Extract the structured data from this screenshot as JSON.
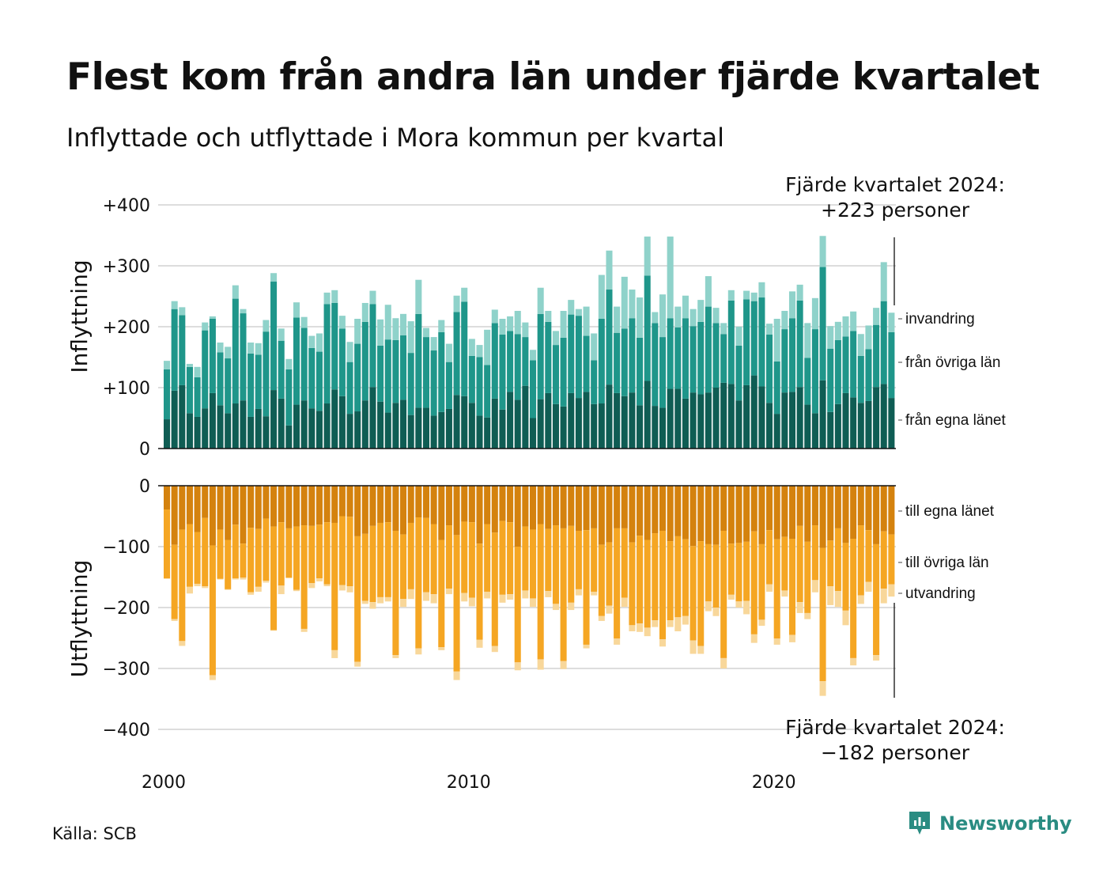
{
  "title": "Flest kom från andra län under fjärde kvartalet",
  "subtitle": "Inflyttade och utflyttade i Mora kommun per kvartal",
  "source": "Källa: SCB",
  "brand": "Newsworthy",
  "colors": {
    "in_own": "#0f5d54",
    "in_other": "#1f968a",
    "in_immig": "#8fd2ca",
    "out_own": "#d4820e",
    "out_other": "#f5a623",
    "out_emig": "#f8d79a",
    "grid": "#dddddd",
    "brand": "#2a8c82"
  },
  "chart_data": [
    {
      "type": "bar",
      "subtype": "stacked",
      "ylabel": "Inflyttning",
      "ylim": [
        0,
        400
      ],
      "yticks": [
        "0",
        "+100",
        "+200",
        "+300",
        "+400"
      ],
      "x_ticks": [
        "2000",
        "2010",
        "2020"
      ],
      "grid": true,
      "annotation": [
        "Fjärde kvartalet 2024:",
        "+223 personer"
      ],
      "series": [
        {
          "name": "från egna länet",
          "values": [
            48,
            95,
            104,
            58,
            52,
            66,
            91,
            71,
            58,
            74,
            79,
            52,
            65,
            53,
            96,
            82,
            38,
            72,
            79,
            66,
            62,
            74,
            97,
            86,
            57,
            61,
            79,
            101,
            77,
            59,
            75,
            80,
            55,
            67,
            67,
            54,
            60,
            65,
            88,
            86,
            75,
            54,
            51,
            82,
            64,
            93,
            80,
            103,
            50,
            81,
            91,
            73,
            69,
            91,
            83,
            93,
            73,
            74,
            105,
            91,
            86,
            92,
            71,
            111,
            70,
            67,
            98,
            98,
            82,
            92,
            89,
            92,
            100,
            108,
            106,
            79,
            104,
            120,
            102,
            75,
            57,
            92,
            93,
            101,
            72,
            58,
            112,
            60,
            73,
            91,
            84,
            75,
            78,
            101,
            106,
            83
          ]
        },
        {
          "name": "från övriga län",
          "values": [
            82,
            134,
            115,
            76,
            65,
            128,
            122,
            87,
            90,
            172,
            143,
            104,
            89,
            139,
            178,
            95,
            92,
            143,
            119,
            99,
            97,
            163,
            142,
            111,
            85,
            111,
            129,
            136,
            92,
            120,
            103,
            106,
            102,
            154,
            116,
            107,
            131,
            77,
            136,
            155,
            77,
            96,
            86,
            124,
            123,
            100,
            108,
            80,
            95,
            140,
            117,
            97,
            113,
            129,
            135,
            92,
            72,
            139,
            156,
            99,
            111,
            122,
            111,
            173,
            136,
            116,
            116,
            101,
            132,
            109,
            119,
            141,
            106,
            80,
            137,
            90,
            141,
            122,
            146,
            112,
            86,
            104,
            121,
            142,
            77,
            138,
            186,
            104,
            105,
            93,
            109,
            77,
            85,
            102,
            136,
            108
          ]
        },
        {
          "name": "invandring",
          "values": [
            14,
            13,
            13,
            5,
            17,
            13,
            4,
            16,
            19,
            22,
            7,
            18,
            19,
            19,
            14,
            20,
            17,
            25,
            18,
            20,
            30,
            19,
            21,
            21,
            33,
            41,
            31,
            22,
            43,
            57,
            36,
            35,
            52,
            56,
            15,
            22,
            20,
            30,
            27,
            23,
            28,
            20,
            58,
            22,
            26,
            24,
            38,
            24,
            17,
            43,
            18,
            23,
            44,
            24,
            11,
            48,
            44,
            72,
            64,
            43,
            85,
            47,
            66,
            64,
            18,
            70,
            134,
            34,
            37,
            28,
            36,
            50,
            25,
            18,
            17,
            31,
            14,
            14,
            25,
            18,
            70,
            30,
            44,
            26,
            57,
            51,
            51,
            37,
            30,
            33,
            32,
            36,
            39,
            28,
            64,
            32
          ]
        }
      ],
      "legend": [
        "invandring",
        "från övriga län",
        "från egna länet"
      ]
    },
    {
      "type": "bar",
      "subtype": "stacked",
      "ylabel": "Utflyttning",
      "ylim": [
        -400,
        0
      ],
      "yticks": [
        "0",
        "−100",
        "−200",
        "−300",
        "−400"
      ],
      "x_ticks": [
        "2000",
        "2010",
        "2020"
      ],
      "grid": true,
      "annotation": [
        "Fjärde kvartalet 2024:",
        "−182 personer"
      ],
      "series": [
        {
          "name": "till egna länet",
          "values": [
            -39,
            -97,
            -72,
            -63,
            -76,
            -53,
            -98,
            -72,
            -89,
            -64,
            -95,
            -69,
            -71,
            -54,
            -67,
            -60,
            -70,
            -67,
            -65,
            -66,
            -64,
            -60,
            -61,
            -50,
            -51,
            -83,
            -79,
            -66,
            -61,
            -60,
            -74,
            -80,
            -61,
            -52,
            -53,
            -63,
            -89,
            -65,
            -81,
            -59,
            -60,
            -95,
            -63,
            -77,
            -58,
            -60,
            -100,
            -67,
            -72,
            -63,
            -71,
            -65,
            -70,
            -66,
            -74,
            -73,
            -70,
            -97,
            -93,
            -70,
            -70,
            -93,
            -82,
            -89,
            -78,
            -74,
            -91,
            -83,
            -88,
            -99,
            -91,
            -96,
            -97,
            -74,
            -95,
            -94,
            -92,
            -75,
            -96,
            -73,
            -88,
            -84,
            -87,
            -66,
            -92,
            -65,
            -102,
            -90,
            -70,
            -94,
            -87,
            -65,
            -73,
            -96,
            -75,
            -80
          ]
        },
        {
          "name": "till övriga län",
          "values": [
            -113,
            -122,
            -183,
            -103,
            -85,
            -112,
            -213,
            -81,
            -81,
            -88,
            -56,
            -106,
            -95,
            -102,
            -170,
            -104,
            -81,
            -104,
            -170,
            -94,
            -88,
            -102,
            -209,
            -113,
            -114,
            -206,
            -110,
            -125,
            -122,
            -123,
            -204,
            -106,
            -109,
            -215,
            -122,
            -115,
            -176,
            -104,
            -224,
            -117,
            -124,
            -158,
            -111,
            -186,
            -121,
            -118,
            -190,
            -105,
            -113,
            -222,
            -102,
            -129,
            -218,
            -126,
            -96,
            -188,
            -104,
            -117,
            -104,
            -181,
            -114,
            -136,
            -144,
            -144,
            -143,
            -178,
            -130,
            -133,
            -126,
            -155,
            -172,
            -94,
            -103,
            -209,
            -84,
            -96,
            -97,
            -169,
            -124,
            -89,
            -163,
            -88,
            -158,
            -125,
            -117,
            -90,
            -219,
            -75,
            -103,
            -111,
            -196,
            -115,
            -85,
            -182,
            -94,
            -82
          ]
        },
        {
          "name": "utvandring",
          "values": [
            -1,
            -3,
            -8,
            -11,
            -4,
            -3,
            -8,
            -1,
            -1,
            -2,
            -3,
            -4,
            -8,
            -3,
            -1,
            -14,
            -1,
            -2,
            -5,
            -8,
            -5,
            -3,
            -13,
            -9,
            -10,
            -8,
            -5,
            -11,
            -10,
            -7,
            -5,
            -13,
            -16,
            -10,
            -14,
            -15,
            -5,
            -9,
            -14,
            -14,
            -14,
            -13,
            -11,
            -10,
            -13,
            -9,
            -13,
            -13,
            -14,
            -17,
            -10,
            -10,
            -13,
            -12,
            -10,
            -6,
            -6,
            -8,
            -13,
            -10,
            -15,
            -10,
            -14,
            -14,
            -11,
            -12,
            -11,
            -23,
            -14,
            -22,
            -13,
            -16,
            -14,
            -17,
            -8,
            -10,
            -22,
            -14,
            -10,
            -12,
            -10,
            -10,
            -12,
            -18,
            -10,
            -20,
            -24,
            -31,
            -26,
            -24,
            -12,
            -14,
            -16,
            -9,
            -24,
            -20
          ]
        }
      ],
      "legend": [
        "till egna länet",
        "till övriga län",
        "utvandring"
      ]
    }
  ]
}
